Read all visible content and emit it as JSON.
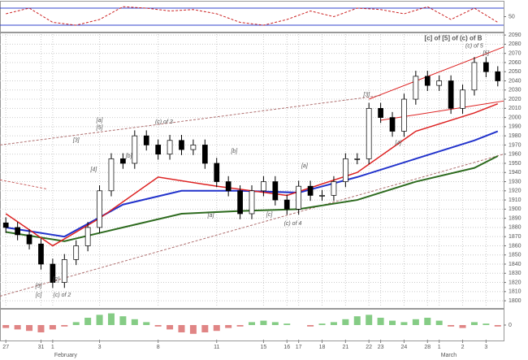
{
  "chart_data": [
    {
      "type": "line",
      "xlim": [
        -0.5,
        42.5
      ],
      "ylim": [
        0,
        100
      ],
      "yticks": [
        50
      ],
      "levels": [
        80,
        20
      ],
      "level_color": "#3344cc",
      "series": [
        {
          "color": "#cc2222",
          "dash": true,
          "x": [
            0,
            2,
            4,
            6,
            8,
            10,
            12,
            14,
            16,
            18,
            20,
            22,
            24,
            26,
            28,
            30,
            32,
            34,
            36,
            38,
            40,
            42
          ],
          "values": [
            60,
            80,
            30,
            20,
            40,
            85,
            80,
            70,
            75,
            60,
            30,
            20,
            40,
            70,
            50,
            80,
            75,
            60,
            85,
            40,
            80,
            30
          ]
        }
      ]
    },
    {
      "type": "candlestick",
      "xlim": [
        -0.5,
        42.5
      ],
      "ylim": [
        1793,
        2091
      ],
      "grid": true,
      "yticks": [
        1800,
        1810,
        1820,
        1830,
        1840,
        1850,
        1860,
        1870,
        1880,
        1890,
        1900,
        1910,
        1920,
        1930,
        1940,
        1950,
        1960,
        1970,
        1980,
        1990,
        2000,
        2010,
        2020,
        2030,
        2040,
        2050,
        2060,
        2070,
        2080,
        2090
      ],
      "xticks": [
        {
          "value": 0,
          "label": "27"
        },
        {
          "value": 3,
          "label": "31"
        },
        {
          "value": 4,
          "label": "1"
        },
        {
          "value": 8,
          "label": "3"
        },
        {
          "value": 13,
          "label": "8"
        },
        {
          "value": 18,
          "label": "11"
        },
        {
          "value": 22,
          "label": "15"
        },
        {
          "value": 24,
          "label": "16"
        },
        {
          "value": 25,
          "label": "17"
        },
        {
          "value": 27,
          "label": "18"
        },
        {
          "value": 29,
          "label": "21"
        },
        {
          "value": 31,
          "label": "22"
        },
        {
          "value": 32,
          "label": "23"
        },
        {
          "value": 34,
          "label": "24"
        },
        {
          "value": 36,
          "label": "28"
        },
        {
          "value": 37,
          "label": "1"
        },
        {
          "value": 39,
          "label": "2"
        },
        {
          "value": 41,
          "label": "3"
        }
      ],
      "month_labels": [
        {
          "value": 4,
          "label": "February"
        },
        {
          "value": 37,
          "label": "March"
        }
      ],
      "x": [
        0,
        1,
        2,
        3,
        4,
        5,
        6,
        7,
        8,
        9,
        10,
        11,
        12,
        13,
        14,
        15,
        16,
        17,
        18,
        19,
        20,
        21,
        22,
        23,
        24,
        25,
        26,
        27,
        28,
        29,
        30,
        31,
        32,
        33,
        34,
        35,
        36,
        37,
        38,
        39,
        40,
        41,
        42
      ],
      "open": [
        1885,
        1880,
        1872,
        1862,
        1840,
        1820,
        1845,
        1860,
        1880,
        1920,
        1955,
        1950,
        1980,
        1970,
        1960,
        1975,
        1965,
        1970,
        1950,
        1930,
        1920,
        1895,
        1920,
        1930,
        1910,
        1900,
        1925,
        1915,
        1915,
        1930,
        1955,
        1955,
        2010,
        2000,
        1985,
        2020,
        2045,
        2035,
        2040,
        2010,
        2030,
        2060,
        2050
      ],
      "high": [
        1891,
        1886,
        1878,
        1868,
        1846,
        1851,
        1866,
        1886,
        1926,
        1961,
        1961,
        1986,
        1986,
        1976,
        1981,
        1981,
        1976,
        1976,
        1956,
        1936,
        1926,
        1926,
        1936,
        1936,
        1916,
        1931,
        1931,
        1921,
        1936,
        1961,
        1961,
        2016,
        2016,
        2006,
        2026,
        2051,
        2051,
        2046,
        2046,
        2036,
        2066,
        2066,
        2056
      ],
      "low": [
        1874,
        1866,
        1856,
        1834,
        1814,
        1814,
        1839,
        1854,
        1874,
        1914,
        1944,
        1944,
        1964,
        1954,
        1954,
        1959,
        1959,
        1944,
        1924,
        1914,
        1889,
        1889,
        1914,
        1904,
        1894,
        1894,
        1909,
        1909,
        1909,
        1924,
        1949,
        1949,
        1994,
        1979,
        1979,
        2014,
        2029,
        2029,
        2004,
        2004,
        2024,
        2044,
        2034
      ],
      "close": [
        1880,
        1872,
        1862,
        1840,
        1820,
        1845,
        1860,
        1880,
        1920,
        1955,
        1950,
        1980,
        1970,
        1960,
        1975,
        1965,
        1970,
        1950,
        1930,
        1920,
        1895,
        1920,
        1930,
        1910,
        1900,
        1925,
        1915,
        1915,
        1930,
        1955,
        1955,
        2010,
        2000,
        1985,
        2020,
        2045,
        2035,
        2040,
        2010,
        2030,
        2060,
        2050,
        2040
      ],
      "series": [
        {
          "color": "#2e6b1f",
          "width": 2,
          "x": [
            0,
            5,
            10,
            15,
            20,
            25,
            30,
            35,
            40,
            42
          ],
          "values": [
            1875,
            1865,
            1880,
            1895,
            1898,
            1900,
            1910,
            1930,
            1945,
            1958
          ]
        },
        {
          "color": "#2233cc",
          "width": 2,
          "x": [
            0,
            5,
            10,
            15,
            20,
            25,
            30,
            35,
            40,
            42
          ],
          "values": [
            1880,
            1870,
            1905,
            1920,
            1920,
            1918,
            1935,
            1955,
            1975,
            1985
          ]
        },
        {
          "color": "#dd2222",
          "width": 1.5,
          "x": [
            0,
            4,
            8,
            13,
            18,
            24,
            30,
            35,
            40,
            42
          ],
          "values": [
            1895,
            1860,
            1890,
            1935,
            1925,
            1915,
            1940,
            1985,
            2005,
            2015
          ]
        }
      ],
      "trendlines": [
        {
          "color": "#dd2222",
          "x": [
            31,
            42.5
          ],
          "values": [
            2020,
            2077
          ]
        },
        {
          "color": "#dd2222",
          "x": [
            32,
            42.5
          ],
          "values": [
            1997,
            2018
          ]
        },
        {
          "color": "#b07070",
          "dash": true,
          "x": [
            -0.5,
            32
          ],
          "values": [
            1970,
            2024
          ]
        },
        {
          "color": "#b07070",
          "dash": true,
          "x": [
            -0.5,
            42.5
          ],
          "values": [
            1805,
            1960
          ]
        },
        {
          "color": "#cc6666",
          "dash": true,
          "x": [
            -0.5,
            3.5
          ],
          "values": [
            1932,
            1922
          ]
        }
      ],
      "annotations": [
        {
          "text": "[c] of [5] of (c) of B",
          "x": 38.2,
          "y": 2086,
          "color": "#2233cc",
          "bold": true
        },
        {
          "text": "(c) of 5",
          "x": 40,
          "y": 2078,
          "color": "#cc2222"
        },
        {
          "text": "[5]",
          "x": 41,
          "y": 2070,
          "color": "#2233cc"
        },
        {
          "text": "(c) of 3",
          "x": 13.5,
          "y": 1995,
          "color": "#cc2222"
        },
        {
          "text": "[a]",
          "x": 8,
          "y": 1997,
          "color": "#cc2222"
        },
        {
          "text": "[5]",
          "x": 8,
          "y": 1989,
          "color": "#2233cc"
        },
        {
          "text": "[3]",
          "x": 6,
          "y": 1975,
          "color": "#2233cc"
        },
        {
          "text": "[4]",
          "x": 7.5,
          "y": 1943,
          "color": "#2233cc"
        },
        {
          "text": "[b]",
          "x": 10.5,
          "y": 1958,
          "color": "#cc2222"
        },
        {
          "text": "[b]",
          "x": 19.5,
          "y": 1963,
          "color": "#cc2222"
        },
        {
          "text": "[a]",
          "x": 25.5,
          "y": 1947,
          "color": "#cc2222"
        },
        {
          "text": "[a]",
          "x": 17.5,
          "y": 1893,
          "color": "#cc2222"
        },
        {
          "text": "[c]",
          "x": 22.5,
          "y": 1894,
          "color": "#cc2222"
        },
        {
          "text": "(c) of 4",
          "x": 24.5,
          "y": 1884,
          "color": "#cc2222"
        },
        {
          "text": "[5]",
          "x": 2.8,
          "y": 1816,
          "color": "#2233cc"
        },
        {
          "text": "[2]",
          "x": 4.3,
          "y": 1823,
          "color": "#2233cc"
        },
        {
          "text": "[c]",
          "x": 2.8,
          "y": 1806,
          "color": "#cc2222"
        },
        {
          "text": "(c) of 2",
          "x": 4.8,
          "y": 1806,
          "color": "#cc2222"
        },
        {
          "text": "[3]",
          "x": 30.8,
          "y": 2025,
          "color": "#2233cc"
        },
        {
          "text": "[4]",
          "x": 33.5,
          "y": 1972,
          "color": "#2233cc"
        }
      ]
    },
    {
      "type": "bar",
      "xlim": [
        -0.5,
        42.5
      ],
      "ylim": [
        -10,
        10
      ],
      "yticks": [
        0
      ],
      "up_color": "#33aa33",
      "down_color": "#cc3333",
      "x": [
        0,
        1,
        2,
        3,
        4,
        5,
        6,
        7,
        8,
        9,
        10,
        11,
        12,
        13,
        14,
        15,
        16,
        17,
        18,
        19,
        20,
        21,
        22,
        23,
        24,
        25,
        26,
        27,
        28,
        29,
        30,
        31,
        32,
        33,
        34,
        35,
        36,
        37,
        38,
        39,
        40,
        41,
        42
      ],
      "values": [
        -2,
        -3,
        -4,
        -5,
        -3,
        -1,
        2,
        5,
        7,
        8,
        6,
        4,
        2,
        -1,
        -3,
        -5,
        -6,
        -5,
        -4,
        -2,
        -1,
        2,
        3,
        2,
        1,
        0,
        -1,
        1,
        2,
        4,
        6,
        7,
        5,
        3,
        2,
        4,
        5,
        3,
        -1,
        -2,
        2,
        1,
        -1
      ]
    }
  ]
}
